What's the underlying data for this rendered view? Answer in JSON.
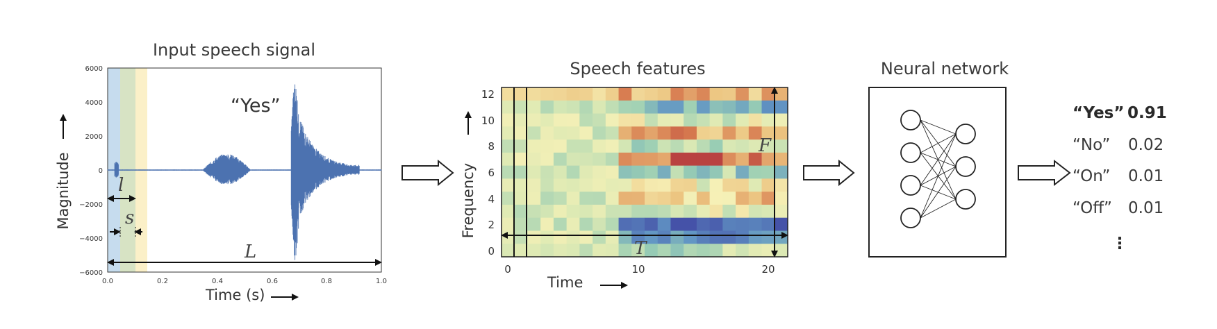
{
  "panels": {
    "signal": {
      "title": "Input speech signal",
      "word": "“Yes”",
      "ylabel": "Magnitude",
      "xlabel": "Time (s)",
      "yticks": [
        "6000",
        "4000",
        "2000",
        "0",
        "−2000",
        "−4000",
        "−6000"
      ],
      "xticks": [
        "0.0",
        "0.2",
        "0.4",
        "0.6",
        "0.8",
        "1.0"
      ],
      "label_l": "l",
      "label_s": "s",
      "label_L": "L"
    },
    "features": {
      "title": "Speech features",
      "ylabel": "Frequency",
      "xlabel": "Time",
      "yticks": [
        "12",
        "10",
        "8",
        "6",
        "4",
        "2",
        "0"
      ],
      "xticks": [
        "0",
        "10",
        "20"
      ],
      "label_F": "F",
      "label_T": "T"
    },
    "network": {
      "title": "Neural network",
      "input_nodes": 4,
      "output_nodes": 3
    },
    "outputs": [
      {
        "word": "“Yes”",
        "score": "0.91"
      },
      {
        "word": "“No”",
        "score": "0.02"
      },
      {
        "word": "“On”",
        "score": "0.01"
      },
      {
        "word": "“Off”",
        "score": "0.01"
      }
    ],
    "ellipsis": "⋮"
  },
  "colors": {
    "waveform": "#4c72b0",
    "window1": "#c6dcee",
    "window2": "#d7e3c4",
    "window3": "#fbf0c8"
  }
}
